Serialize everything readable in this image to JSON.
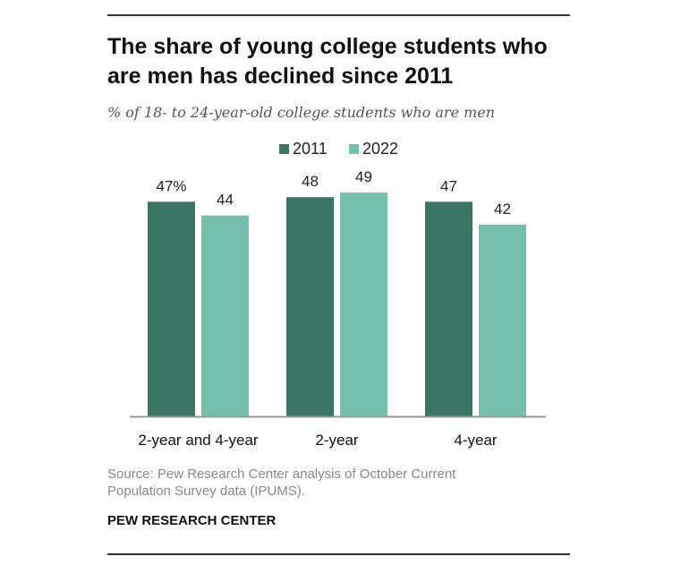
{
  "chart_data": {
    "type": "bar",
    "title": "The share of young college students who are men has declined since 2011",
    "subtitle": "% of 18- to 24-year-old college students who are men",
    "categories": [
      "2-year and 4-year",
      "2-year",
      "4-year"
    ],
    "series": [
      {
        "name": "2011",
        "color": "#3b7565",
        "values": [
          47,
          48,
          47
        ],
        "labels": [
          "47%",
          "48",
          "47"
        ]
      },
      {
        "name": "2022",
        "color": "#76bfad",
        "values": [
          44,
          49,
          42
        ],
        "labels": [
          "44",
          "49",
          "42"
        ]
      }
    ],
    "ylim": [
      0,
      50
    ],
    "grid": false,
    "legend": "top-center",
    "source": "Source: Pew Research Center analysis of October Current Population Survey data (IPUMS).",
    "brand": "PEW RESEARCH CENTER"
  }
}
